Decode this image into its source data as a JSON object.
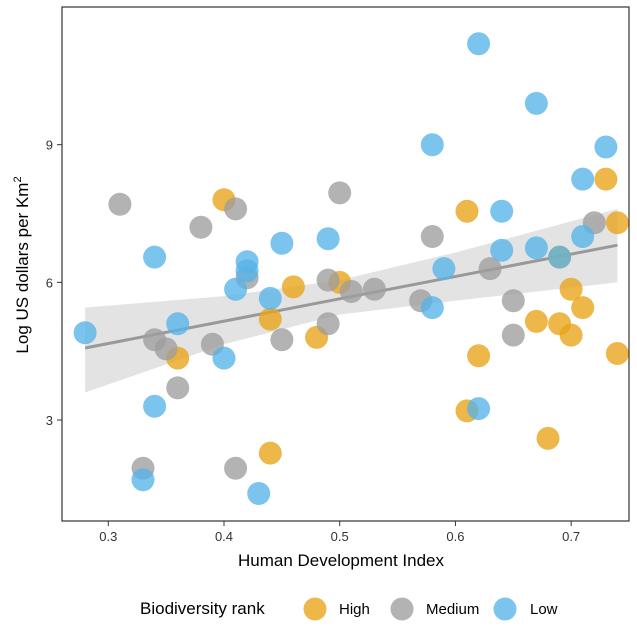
{
  "chart_data": {
    "type": "scatter",
    "xlabel": "Human Development Index",
    "ylabel_main": "Log US dollars per Km",
    "ylabel_superscript": "2",
    "xlim": [
      0.26,
      0.75
    ],
    "ylim": [
      0.8,
      12.0
    ],
    "xticks": [
      0.3,
      0.4,
      0.5,
      0.6,
      0.7
    ],
    "xtick_labels": [
      "0.3",
      "0.4",
      "0.5",
      "0.6",
      "0.7"
    ],
    "yticks": [
      3,
      6,
      9
    ],
    "ytick_labels": [
      "3",
      "6",
      "9"
    ],
    "grid": false,
    "legend": {
      "title": "Biodiversity rank",
      "position": "bottom",
      "entries": [
        "High",
        "Medium",
        "Low"
      ]
    },
    "colors": {
      "High": "#E8A317",
      "Medium": "#9E9E9E",
      "Low": "#56B4E9",
      "trend": "#999999",
      "ribbon": "#D9D9D9"
    },
    "trend_line": {
      "x": [
        0.28,
        0.74
      ],
      "y": [
        4.57,
        6.81
      ]
    },
    "confidence_band": {
      "x": [
        0.28,
        0.4,
        0.5,
        0.6,
        0.74
      ],
      "upper": [
        5.45,
        5.7,
        6.05,
        6.65,
        7.6
      ],
      "lower": [
        3.6,
        4.65,
        5.3,
        5.6,
        6.0
      ]
    },
    "series": [
      {
        "name": "High",
        "points": [
          [
            0.4,
            7.8
          ],
          [
            0.36,
            4.35
          ],
          [
            0.44,
            5.2
          ],
          [
            0.46,
            5.9
          ],
          [
            0.44,
            2.28
          ],
          [
            0.48,
            4.8
          ],
          [
            0.5,
            6.0
          ],
          [
            0.61,
            7.55
          ],
          [
            0.62,
            4.4
          ],
          [
            0.61,
            3.2
          ],
          [
            0.67,
            5.15
          ],
          [
            0.69,
            5.1
          ],
          [
            0.69,
            6.55
          ],
          [
            0.7,
            5.85
          ],
          [
            0.7,
            4.85
          ],
          [
            0.71,
            5.45
          ],
          [
            0.68,
            2.6
          ],
          [
            0.73,
            8.25
          ],
          [
            0.74,
            7.3
          ],
          [
            0.74,
            4.45
          ]
        ]
      },
      {
        "name": "Medium",
        "points": [
          [
            0.31,
            7.7
          ],
          [
            0.34,
            4.75
          ],
          [
            0.35,
            4.55
          ],
          [
            0.36,
            3.7
          ],
          [
            0.33,
            1.95
          ],
          [
            0.38,
            7.2
          ],
          [
            0.39,
            4.65
          ],
          [
            0.41,
            7.6
          ],
          [
            0.42,
            6.1
          ],
          [
            0.41,
            1.95
          ],
          [
            0.45,
            4.75
          ],
          [
            0.49,
            6.05
          ],
          [
            0.49,
            5.1
          ],
          [
            0.5,
            7.95
          ],
          [
            0.51,
            5.8
          ],
          [
            0.53,
            5.85
          ],
          [
            0.57,
            5.6
          ],
          [
            0.58,
            7.0
          ],
          [
            0.63,
            6.3
          ],
          [
            0.65,
            5.6
          ],
          [
            0.65,
            4.85
          ],
          [
            0.72,
            7.3
          ]
        ]
      },
      {
        "name": "Low",
        "points": [
          [
            0.28,
            4.9
          ],
          [
            0.33,
            1.7
          ],
          [
            0.34,
            6.55
          ],
          [
            0.34,
            3.3
          ],
          [
            0.36,
            5.1
          ],
          [
            0.4,
            4.35
          ],
          [
            0.41,
            5.85
          ],
          [
            0.42,
            6.45
          ],
          [
            0.42,
            6.25
          ],
          [
            0.43,
            1.4
          ],
          [
            0.44,
            5.65
          ],
          [
            0.45,
            6.85
          ],
          [
            0.49,
            6.95
          ],
          [
            0.58,
            9.0
          ],
          [
            0.58,
            5.45
          ],
          [
            0.59,
            6.3
          ],
          [
            0.62,
            11.2
          ],
          [
            0.62,
            3.25
          ],
          [
            0.64,
            7.55
          ],
          [
            0.64,
            6.7
          ],
          [
            0.67,
            9.9
          ],
          [
            0.67,
            6.75
          ],
          [
            0.69,
            6.55
          ],
          [
            0.71,
            8.25
          ],
          [
            0.71,
            7.0
          ],
          [
            0.73,
            8.95
          ]
        ]
      }
    ]
  }
}
